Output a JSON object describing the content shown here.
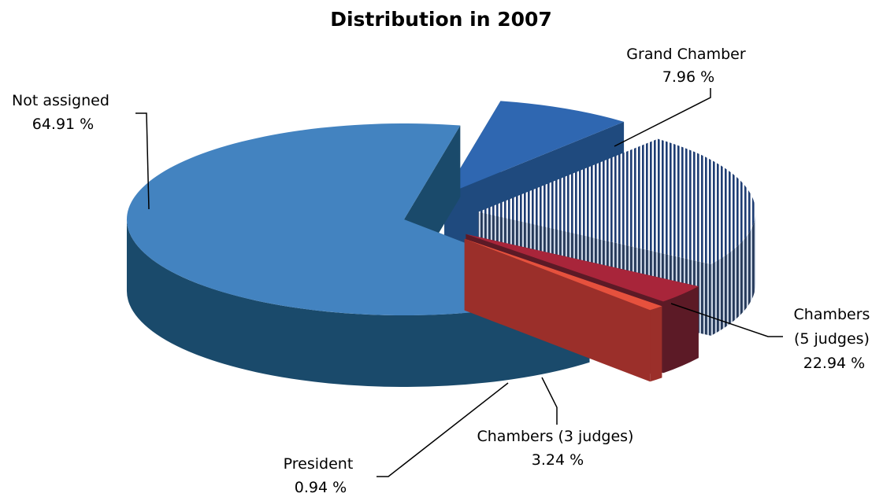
{
  "chart_data": {
    "type": "pie",
    "style": "3d-exploded",
    "title": "Distribution in 2007",
    "slices": [
      {
        "name": "Grand Chamber",
        "value": 7.96,
        "value_label": "7.96 %",
        "color": "#2f67b1",
        "side_color": "#1f4a7e",
        "pattern": "solid"
      },
      {
        "name": "Chambers (5 judges)",
        "label_lines": [
          "Chambers",
          "(5 judges)"
        ],
        "value": 22.94,
        "value_label": "22.94 %",
        "color": "#1e3d73",
        "side_color": "#25395a",
        "pattern": "vertical-stripes"
      },
      {
        "name": "Chambers (3 judges)",
        "value": 3.24,
        "value_label": "3.24 %",
        "color": "#a8253a",
        "side_color": "#5c1a26",
        "pattern": "solid"
      },
      {
        "name": "President",
        "value": 0.94,
        "value_label": "0.94 %",
        "color": "#e6513d",
        "side_color": "#9b2f2a",
        "pattern": "solid"
      },
      {
        "name": "Not assigned",
        "value": 64.91,
        "value_label": "64.91 %",
        "color": "#4383c0",
        "side_color": "#1a4a6b",
        "pattern": "solid"
      }
    ],
    "legend": "none"
  }
}
